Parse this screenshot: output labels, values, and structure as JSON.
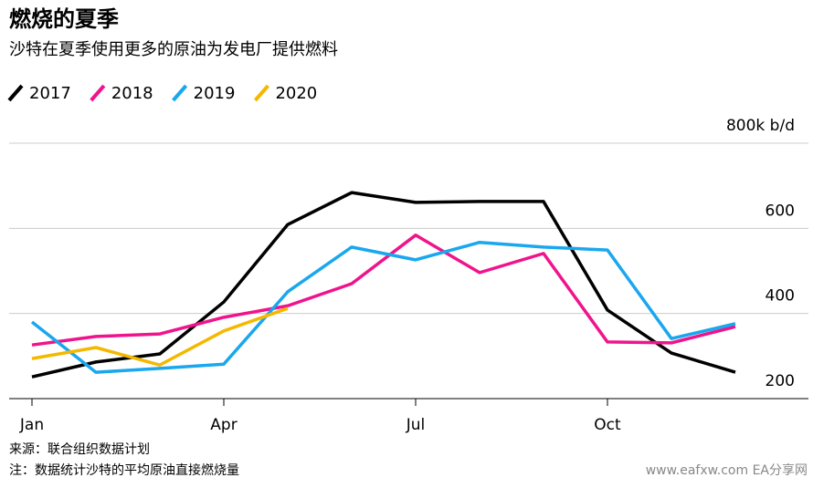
{
  "chart_data": {
    "type": "line",
    "title": "燃烧的夏季",
    "subtitle": "沙特在夏季使用更多的原油为发电厂提供燃料",
    "categories": [
      "Jan",
      null,
      null,
      "Apr",
      null,
      null,
      "Jul",
      null,
      null,
      "Oct",
      null,
      null
    ],
    "series": [
      {
        "name": "2017",
        "color": "#000000",
        "values": [
          251,
          286,
          305,
          427,
          609,
          684,
          661,
          663,
          663,
          408,
          307,
          262
        ]
      },
      {
        "name": "2018",
        "color": "#f0148c",
        "values": [
          326,
          346,
          352,
          391,
          418,
          470,
          584,
          496,
          541,
          333,
          331,
          369
        ]
      },
      {
        "name": "2019",
        "color": "#1aa7ee",
        "values": [
          380,
          262,
          271,
          281,
          451,
          556,
          526,
          567,
          556,
          549,
          341,
          376
        ]
      },
      {
        "name": "2020",
        "color": "#f5b800",
        "values": [
          294,
          320,
          279,
          359,
          412,
          null,
          null,
          null,
          null,
          null,
          null,
          null
        ]
      }
    ],
    "ylim": [
      200,
      800
    ],
    "yticks": [
      200,
      400,
      600,
      {
        "value": 800,
        "label": "800k b/d"
      }
    ],
    "grid": true,
    "legend": "top-left",
    "source": "来源：联合组织数据计划",
    "note": "注：数据统计沙特的平均原油直接燃烧量",
    "watermark": "www.eafxw.com EA分享网"
  }
}
